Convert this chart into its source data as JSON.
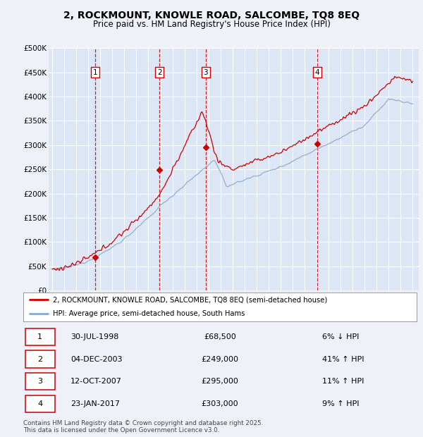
{
  "title": "2, ROCKMOUNT, KNOWLE ROAD, SALCOMBE, TQ8 8EQ",
  "subtitle": "Price paid vs. HM Land Registry's House Price Index (HPI)",
  "background_color": "#eef2f8",
  "plot_bg_color": "#dce6f5",
  "grid_color": "#ffffff",
  "ylim": [
    0,
    500000
  ],
  "yticks": [
    0,
    50000,
    100000,
    150000,
    200000,
    250000,
    300000,
    350000,
    400000,
    450000,
    500000
  ],
  "ytick_labels": [
    "£0",
    "£50K",
    "£100K",
    "£150K",
    "£200K",
    "£250K",
    "£300K",
    "£350K",
    "£400K",
    "£450K",
    "£500K"
  ],
  "xlim_start": 1994.7,
  "xlim_end": 2025.5,
  "transactions": [
    {
      "num": 1,
      "date": "30-JUL-1998",
      "year": 1998.58,
      "price": 68500,
      "pct": "6%",
      "dir": "↓"
    },
    {
      "num": 2,
      "date": "04-DEC-2003",
      "year": 2003.92,
      "price": 249000,
      "pct": "41%",
      "dir": "↑"
    },
    {
      "num": 3,
      "date": "12-OCT-2007",
      "year": 2007.78,
      "price": 295000,
      "pct": "11%",
      "dir": "↑"
    },
    {
      "num": 4,
      "date": "23-JAN-2017",
      "year": 2017.06,
      "price": 303000,
      "pct": "9%",
      "dir": "↑"
    }
  ],
  "legend_entries": [
    {
      "label": "2, ROCKMOUNT, KNOWLE ROAD, SALCOMBE, TQ8 8EQ (semi-detached house)",
      "color": "#cc0000",
      "lw": 1.5
    },
    {
      "label": "HPI: Average price, semi-detached house, South Hams",
      "color": "#88aacc",
      "lw": 1.5
    }
  ],
  "footer": "Contains HM Land Registry data © Crown copyright and database right 2025.\nThis data is licensed under the Open Government Licence v3.0.",
  "marker_box_color": "#cc0000",
  "vline_color": "#cc0000",
  "table_rows": [
    {
      "num": 1,
      "date": "30-JUL-1998",
      "price": "£68,500",
      "pct": "6% ↓ HPI"
    },
    {
      "num": 2,
      "date": "04-DEC-2003",
      "price": "£249,000",
      "pct": "41% ↑ HPI"
    },
    {
      "num": 3,
      "date": "12-OCT-2007",
      "price": "£295,000",
      "pct": "11% ↑ HPI"
    },
    {
      "num": 4,
      "date": "23-JAN-2017",
      "price": "£303,000",
      "pct": "9% ↑ HPI"
    }
  ]
}
